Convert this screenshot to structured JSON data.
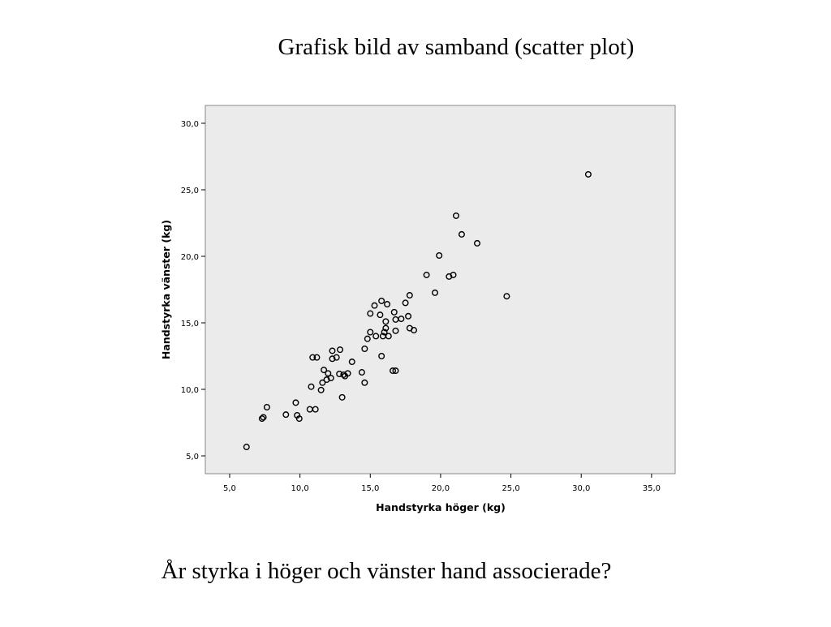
{
  "slide_title": "Grafisk bild av samband (scatter plot)",
  "caption": "År styrka i höger och vänster hand associerade?",
  "chart_data": {
    "type": "scatter",
    "x_label": "Handstyrka höger (kg)",
    "y_label": "Handstyrka vänster (kg)",
    "xlim": [
      3.27,
      36.68
    ],
    "ylim": [
      3.66,
      31.34
    ],
    "xticks": [
      {
        "value": 5,
        "label": "5,0"
      },
      {
        "value": 10,
        "label": "10,0"
      },
      {
        "value": 15,
        "label": "15,0"
      },
      {
        "value": 20,
        "label": "20,0"
      },
      {
        "value": 25,
        "label": "25,0"
      },
      {
        "value": 30,
        "label": "30,0"
      },
      {
        "value": 35,
        "label": "35,0"
      }
    ],
    "yticks": [
      {
        "value": 5,
        "label": "5,0"
      },
      {
        "value": 10,
        "label": "10,0"
      },
      {
        "value": 15,
        "label": "15,0"
      },
      {
        "value": 20,
        "label": "20,0"
      },
      {
        "value": 25,
        "label": "25,0"
      },
      {
        "value": 30,
        "label": "30,0"
      }
    ],
    "color": "#000000",
    "x": [
      30.5,
      21.1,
      21.5,
      22.6,
      19.9,
      19.0,
      20.6,
      20.9,
      19.6,
      24.7,
      17.8,
      15.8,
      15.3,
      16.2,
      17.5,
      15.0,
      15.7,
      16.7,
      17.7,
      16.1,
      16.8,
      17.2,
      17.8,
      18.1,
      16.1,
      15.0,
      16.0,
      16.8,
      14.8,
      15.4,
      15.9,
      16.3,
      14.6,
      12.3,
      12.85,
      10.9,
      11.2,
      12.3,
      12.6,
      13.7,
      15.8,
      11.7,
      12.0,
      12.8,
      13.1,
      13.2,
      13.4,
      14.4,
      16.6,
      16.8,
      12.2,
      11.9,
      11.6,
      14.6,
      10.8,
      11.5,
      13.0,
      9.7,
      7.65,
      9.0,
      9.8,
      10.7,
      11.1,
      9.95,
      7.4,
      7.3,
      6.2
    ],
    "values": [
      26.16,
      23.05,
      21.65,
      20.98,
      20.06,
      18.6,
      18.48,
      18.6,
      17.26,
      17.0,
      17.07,
      16.65,
      16.3,
      16.4,
      16.5,
      15.7,
      15.6,
      15.8,
      15.5,
      15.1,
      15.25,
      15.3,
      14.6,
      14.45,
      14.6,
      14.3,
      14.3,
      14.4,
      13.8,
      14.0,
      14.0,
      14.0,
      13.05,
      12.9,
      12.98,
      12.4,
      12.4,
      12.3,
      12.4,
      12.07,
      12.5,
      11.46,
      11.2,
      11.16,
      11.1,
      11.0,
      11.2,
      11.28,
      11.4,
      11.4,
      10.85,
      10.73,
      10.5,
      10.5,
      10.2,
      9.95,
      9.4,
      9.0,
      8.66,
      8.1,
      8.05,
      8.5,
      8.5,
      7.8,
      7.9,
      7.8,
      5.67
    ]
  }
}
